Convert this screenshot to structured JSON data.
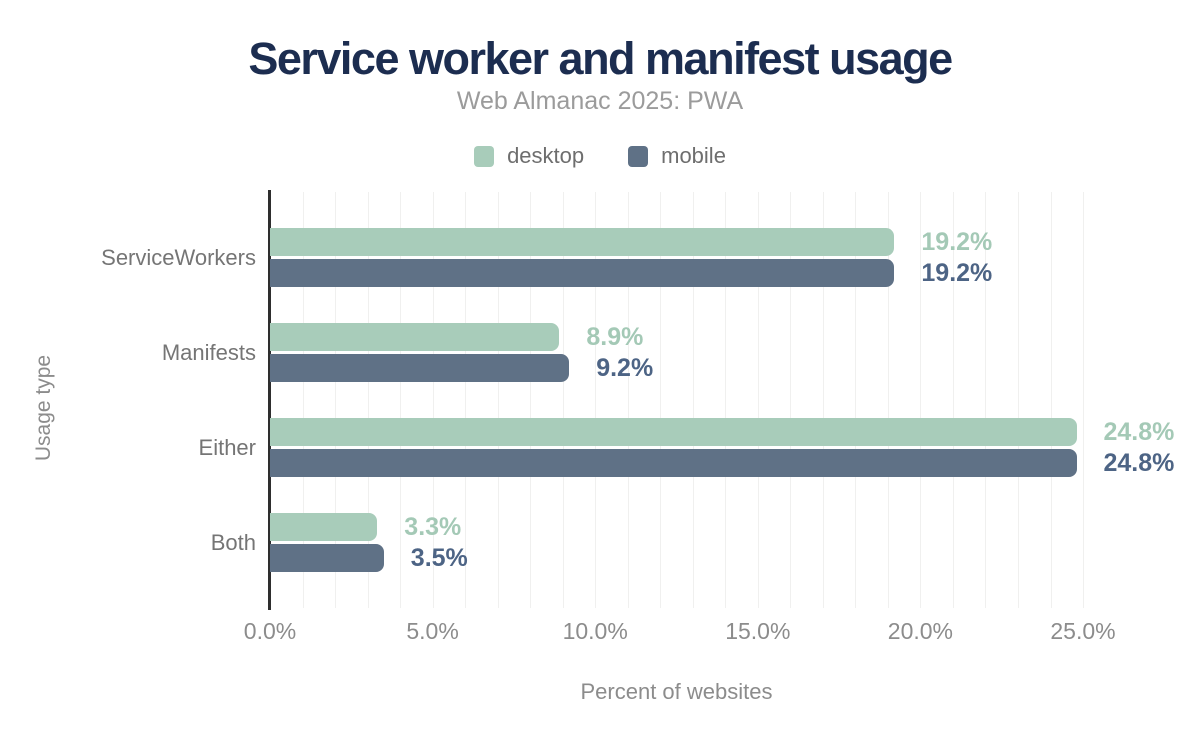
{
  "header": {
    "title": "Service worker and manifest usage",
    "subtitle": "Web Almanac 2025: PWA"
  },
  "legend": [
    {
      "name": "desktop",
      "color": "#a8ccba"
    },
    {
      "name": "mobile",
      "color": "#5f7186"
    }
  ],
  "chart_data": {
    "type": "bar",
    "orientation": "horizontal",
    "title": "Service worker and manifest usage",
    "subtitle": "Web Almanac 2025: PWA",
    "categories": [
      "ServiceWorkers",
      "Manifests",
      "Either",
      "Both"
    ],
    "series": [
      {
        "name": "desktop",
        "color": "#a8ccba",
        "label_color": "#a4c9b6",
        "values": [
          19.2,
          8.9,
          24.8,
          3.3
        ],
        "labels": [
          "19.2%",
          "8.9%",
          "24.8%",
          "3.3%"
        ]
      },
      {
        "name": "mobile",
        "color": "#5f7186",
        "label_color": "#4d6485",
        "values": [
          19.2,
          9.2,
          24.8,
          3.5
        ],
        "labels": [
          "19.2%",
          "9.2%",
          "24.8%",
          "3.5%"
        ]
      }
    ],
    "xlabel": "Percent of websites",
    "ylabel": "Usage type",
    "xlim": [
      0,
      25
    ],
    "xticks": [
      "0.0%",
      "5.0%",
      "10.0%",
      "15.0%",
      "20.0%",
      "25.0%"
    ],
    "xtick_step_percent": 5,
    "grid": "vertical minor gridlines every 1%",
    "legend_position": "top-center",
    "colors": {
      "title": "#1c2d50",
      "subtitle": "#9b9b9b",
      "axis_text": "#8c8c8c",
      "category_text": "#757575",
      "axis_line": "#2e2e2e",
      "gridline": "#f0f0ef",
      "background": "#ffffff"
    }
  }
}
